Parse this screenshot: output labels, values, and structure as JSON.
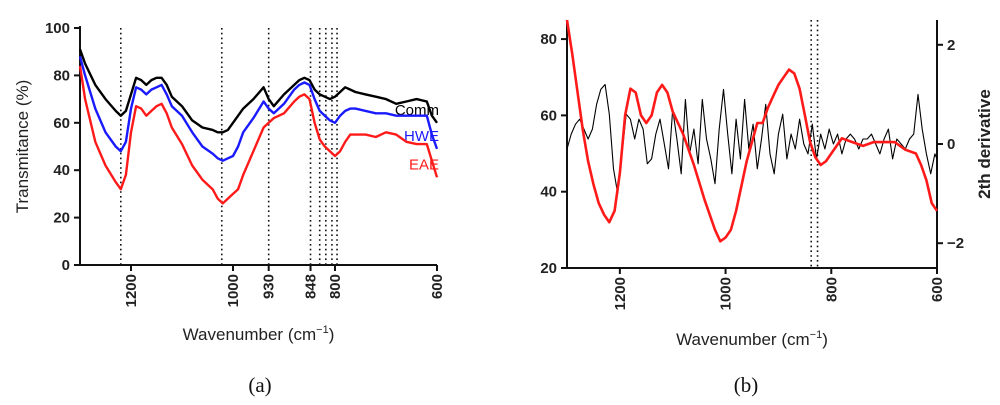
{
  "chart_data": [
    {
      "panel_label": "(a)",
      "type": "line",
      "xlabel": "Wavenumber (cm⁻¹)",
      "ylabel": "Transmitance (%)",
      "xlim": [
        1300,
        600
      ],
      "ylim": [
        0,
        100
      ],
      "y_ticks": [
        0,
        20,
        40,
        60,
        80,
        100
      ],
      "x_ticks": [
        {
          "value": 1200,
          "label": "1200"
        },
        {
          "value": 1000,
          "label": "1000"
        },
        {
          "value": 930,
          "label": "930"
        },
        {
          "value": 848,
          "label": "848"
        },
        {
          "value": 800,
          "label": "800"
        },
        {
          "value": 600,
          "label": "600"
        }
      ],
      "reference_lines": [
        1220,
        1022,
        930,
        848,
        830,
        818,
        806,
        796
      ],
      "series": [
        {
          "name": "Comm",
          "color": "#000000",
          "x": [
            1300,
            1290,
            1270,
            1250,
            1230,
            1220,
            1210,
            1200,
            1190,
            1180,
            1170,
            1160,
            1150,
            1140,
            1130,
            1120,
            1100,
            1080,
            1060,
            1040,
            1030,
            1020,
            1010,
            1000,
            990,
            980,
            960,
            940,
            930,
            920,
            900,
            880,
            870,
            860,
            850,
            840,
            830,
            820,
            810,
            800,
            790,
            780,
            770,
            760,
            740,
            720,
            700,
            680,
            660,
            640,
            620,
            610,
            600
          ],
          "y": [
            91,
            85,
            76,
            70,
            65,
            63,
            65,
            72,
            79,
            78,
            76,
            78,
            79,
            79,
            76,
            71,
            67,
            61,
            58,
            57,
            56,
            56,
            57,
            60,
            63,
            66,
            70,
            75,
            70,
            67,
            72,
            76,
            78,
            79,
            78,
            74,
            72,
            71,
            70,
            71,
            73,
            75,
            74,
            73,
            72,
            71,
            70,
            68,
            69,
            70,
            69,
            63,
            60
          ]
        },
        {
          "name": "HWE",
          "color": "#1a1aff",
          "x": [
            1300,
            1290,
            1270,
            1250,
            1230,
            1220,
            1210,
            1200,
            1190,
            1180,
            1170,
            1160,
            1150,
            1140,
            1130,
            1120,
            1100,
            1080,
            1060,
            1040,
            1030,
            1020,
            1010,
            1000,
            990,
            980,
            960,
            940,
            930,
            920,
            900,
            880,
            870,
            860,
            850,
            840,
            830,
            820,
            810,
            800,
            790,
            780,
            770,
            760,
            740,
            720,
            700,
            680,
            660,
            640,
            620,
            610,
            600
          ],
          "y": [
            88,
            80,
            66,
            56,
            50,
            48,
            52,
            66,
            75,
            74,
            72,
            74,
            75,
            76,
            72,
            67,
            63,
            56,
            50,
            47,
            45,
            44,
            45,
            46,
            50,
            56,
            62,
            69,
            66,
            64,
            68,
            74,
            76,
            77,
            76,
            70,
            65,
            63,
            61,
            60,
            63,
            65,
            66,
            66,
            65,
            64,
            64,
            63,
            63,
            63,
            63,
            55,
            49
          ]
        },
        {
          "name": "EAE",
          "color": "#ff1a1a",
          "x": [
            1300,
            1290,
            1270,
            1250,
            1230,
            1220,
            1210,
            1200,
            1190,
            1180,
            1170,
            1160,
            1150,
            1140,
            1130,
            1120,
            1100,
            1080,
            1060,
            1040,
            1030,
            1020,
            1010,
            1000,
            990,
            980,
            960,
            940,
            930,
            920,
            900,
            880,
            870,
            860,
            850,
            840,
            830,
            820,
            810,
            800,
            790,
            780,
            770,
            760,
            740,
            720,
            700,
            680,
            660,
            640,
            620,
            610,
            600
          ],
          "y": [
            84,
            70,
            52,
            42,
            35,
            32,
            38,
            56,
            67,
            66,
            63,
            65,
            67,
            68,
            64,
            58,
            51,
            42,
            36,
            32,
            28,
            26,
            28,
            30,
            32,
            38,
            48,
            58,
            60,
            62,
            64,
            69,
            71,
            72,
            70,
            60,
            53,
            50,
            48,
            46,
            48,
            52,
            55,
            55,
            55,
            54,
            56,
            55,
            52,
            51,
            51,
            44,
            37
          ]
        }
      ]
    },
    {
      "panel_label": "(b)",
      "type": "line",
      "xlabel": "Wavenumber (cm⁻¹)",
      "ylabel": "",
      "y2label": "2th derivative",
      "xlim": [
        1300,
        600
      ],
      "ylim": [
        20,
        85
      ],
      "y_ticks": [
        20,
        40,
        60,
        80
      ],
      "y2lim": [
        -2.5,
        2.5
      ],
      "y2_ticks": [
        -2,
        0,
        2
      ],
      "x_ticks": [
        1200,
        1000,
        800,
        600
      ],
      "reference_lines": [
        838,
        826
      ],
      "series": [
        {
          "name": "",
          "color": "#ff1a1a",
          "axis": "left",
          "x": [
            1300,
            1290,
            1280,
            1270,
            1260,
            1250,
            1240,
            1230,
            1220,
            1210,
            1200,
            1190,
            1180,
            1170,
            1160,
            1150,
            1140,
            1130,
            1120,
            1110,
            1100,
            1080,
            1060,
            1040,
            1020,
            1010,
            1000,
            990,
            980,
            960,
            940,
            930,
            920,
            910,
            900,
            890,
            880,
            870,
            860,
            850,
            840,
            830,
            820,
            810,
            800,
            790,
            780,
            760,
            740,
            720,
            700,
            680,
            660,
            640,
            630,
            620,
            610,
            600
          ],
          "y": [
            85,
            76,
            66,
            56,
            48,
            42,
            37,
            34,
            32,
            35,
            45,
            60,
            67,
            66,
            60,
            58,
            60,
            66,
            68,
            66,
            61,
            55,
            47,
            38,
            30,
            27,
            28,
            30,
            35,
            48,
            58,
            58,
            62,
            65,
            68,
            70,
            72,
            71,
            67,
            60,
            53,
            49,
            47,
            48,
            50,
            52,
            54,
            53,
            52,
            53,
            53,
            53,
            51,
            50,
            47,
            43,
            37,
            35
          ]
        },
        {
          "name": "",
          "color": "#000000",
          "axis": "right",
          "x": [
            1300,
            1292,
            1284,
            1276,
            1268,
            1260,
            1252,
            1244,
            1236,
            1228,
            1220,
            1212,
            1204,
            1196,
            1188,
            1180,
            1172,
            1164,
            1156,
            1148,
            1140,
            1132,
            1124,
            1116,
            1108,
            1100,
            1092,
            1084,
            1076,
            1068,
            1060,
            1052,
            1044,
            1036,
            1028,
            1020,
            1012,
            1004,
            996,
            988,
            980,
            972,
            964,
            956,
            948,
            940,
            932,
            924,
            916,
            908,
            900,
            892,
            884,
            876,
            868,
            860,
            852,
            844,
            836,
            828,
            820,
            812,
            804,
            796,
            788,
            780,
            772,
            764,
            756,
            748,
            740,
            732,
            724,
            716,
            708,
            700,
            692,
            684,
            676,
            668,
            660,
            652,
            644,
            636,
            628,
            620,
            612,
            604,
            600
          ],
          "y": [
            -0.1,
            0.2,
            0.4,
            0.5,
            0.3,
            0.1,
            0.3,
            0.8,
            1.1,
            1.2,
            0.6,
            -0.5,
            -1.0,
            -0.2,
            0.6,
            0.5,
            0.1,
            0.5,
            0.3,
            -0.4,
            -0.3,
            0.2,
            0.5,
            0.0,
            -0.5,
            0.7,
            0.1,
            -0.6,
            0.9,
            -0.2,
            0.3,
            -0.4,
            0.9,
            0.1,
            -0.3,
            -0.8,
            0.3,
            1.1,
            0.2,
            -0.6,
            0.5,
            -0.3,
            0.9,
            -0.1,
            0.4,
            -0.5,
            0.1,
            0.8,
            -0.2,
            -0.6,
            0.2,
            0.6,
            -0.3,
            0.2,
            -0.1,
            0.5,
            0.0,
            -0.2,
            0.4,
            -0.3,
            0.2,
            -0.1,
            0.3,
            0.0,
            0.2,
            -0.2,
            0.1,
            0.2,
            0.1,
            -0.1,
            0.1,
            0.1,
            0.2,
            0.0,
            -0.2,
            0.1,
            0.3,
            -0.3,
            0.1,
            0.0,
            -0.1,
            0.1,
            0.2,
            1.0,
            0.3,
            -0.2,
            -0.6,
            -0.2,
            -0.3
          ]
        }
      ]
    }
  ]
}
